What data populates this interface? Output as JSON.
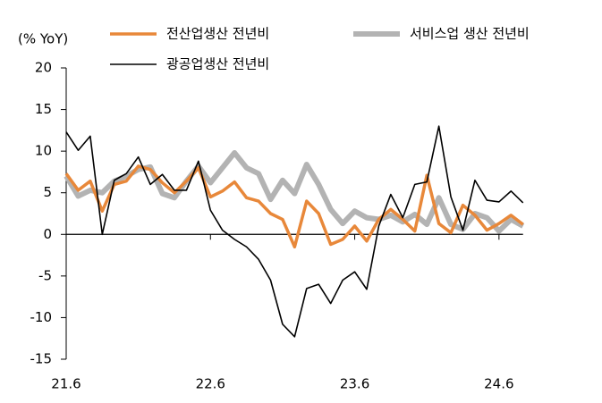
{
  "chart_data": {
    "type": "line",
    "y_label": "(% YoY)",
    "categories": [
      "21.6",
      null,
      null,
      null,
      null,
      null,
      null,
      null,
      null,
      null,
      null,
      null,
      "22.6",
      null,
      null,
      null,
      null,
      null,
      null,
      null,
      null,
      null,
      null,
      null,
      "23.6",
      null,
      null,
      null,
      null,
      null,
      null,
      null,
      null,
      null,
      null,
      null,
      "24.6",
      null,
      null
    ],
    "series": [
      {
        "name": "전산업생산 전년비",
        "color": "#e8883a",
        "values": [
          7.3,
          5.3,
          6.4,
          2.8,
          6.0,
          6.4,
          8.2,
          7.8,
          6.2,
          5.0,
          6.4,
          8.0,
          4.5,
          5.2,
          6.3,
          4.4,
          4.0,
          2.5,
          1.8,
          -1.5,
          4.0,
          2.5,
          -1.2,
          -0.6,
          1.0,
          -0.8,
          1.8,
          3.0,
          1.8,
          0.4,
          7.1,
          1.3,
          0.2,
          3.5,
          2.3,
          0.5,
          1.3,
          2.3,
          1.2
        ]
      },
      {
        "name": "서비스업 생산 전년비",
        "color": "#b3b3b3",
        "values": [
          7.0,
          4.6,
          5.3,
          5.0,
          6.4,
          7.0,
          7.8,
          8.1,
          4.9,
          4.4,
          6.4,
          8.2,
          6.2,
          8.0,
          9.8,
          8.0,
          7.3,
          4.2,
          6.5,
          4.9,
          8.4,
          6.0,
          3.0,
          1.3,
          2.8,
          2.0,
          1.8,
          2.3,
          1.5,
          2.4,
          1.2,
          4.4,
          1.2,
          0.6,
          2.5,
          2.0,
          0.4,
          1.8,
          1.0
        ]
      },
      {
        "name": "광공업생산 전년비",
        "color": "#000000",
        "values": [
          12.3,
          10.1,
          11.8,
          0,
          6.5,
          7.3,
          9.3,
          6.0,
          7.2,
          5.3,
          5.3,
          8.8,
          2.9,
          0.5,
          -0.6,
          -1.5,
          -3.0,
          -5.5,
          -10.8,
          -12.3,
          -6.5,
          -6.0,
          -8.3,
          -5.5,
          -4.5,
          -6.6,
          1.0,
          4.8,
          2.0,
          6.0,
          6.3,
          13.0,
          4.5,
          0.5,
          6.5,
          4.1,
          3.9,
          5.2,
          3.8
        ]
      }
    ],
    "ylim": [
      -15,
      20
    ],
    "yticks": [
      -15,
      -10,
      -5,
      0,
      5,
      10,
      15,
      20
    ]
  }
}
